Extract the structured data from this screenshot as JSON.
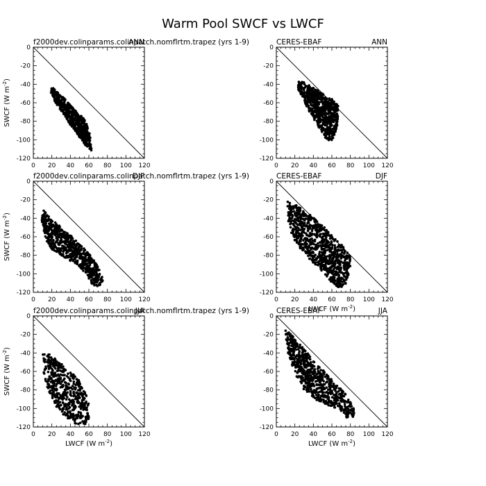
{
  "figure": {
    "title": "Warm Pool SWCF vs LWCF"
  },
  "chart_data": [
    {
      "type": "scatter",
      "model_label": "f2000dev.colinparams.colinpatch.nomflrtm.trapez (yrs 1-9)",
      "season": "ANN",
      "xlabel": "",
      "ylabel": "SWCF (W m^-2)",
      "xlim": [
        0,
        120
      ],
      "ylim": [
        -120,
        0
      ],
      "xticks": [
        "0",
        "20",
        "40",
        "60",
        "80",
        "100",
        "120"
      ],
      "yticks": [
        "0",
        "-20",
        "-40",
        "-60",
        "-80",
        "-100",
        "-120"
      ],
      "cloud": {
        "points": [
          [
            20,
            -42
          ],
          [
            26,
            -48
          ],
          [
            33,
            -55
          ],
          [
            40,
            -62
          ],
          [
            48,
            -70
          ],
          [
            55,
            -78
          ],
          [
            60,
            -88
          ],
          [
            62,
            -100
          ],
          [
            63,
            -112
          ],
          [
            58,
            -108
          ],
          [
            52,
            -100
          ],
          [
            46,
            -92
          ],
          [
            40,
            -84
          ],
          [
            34,
            -74
          ],
          [
            28,
            -66
          ],
          [
            23,
            -58
          ],
          [
            19,
            -50
          ]
        ],
        "n": 600
      }
    },
    {
      "type": "scatter",
      "model_label": "CERES-EBAF",
      "season": "ANN",
      "xlabel": "",
      "ylabel": "",
      "xlim": [
        0,
        120
      ],
      "ylim": [
        -120,
        0
      ],
      "xticks": [
        "0",
        "20",
        "40",
        "60",
        "80",
        "100",
        "120"
      ],
      "yticks": [
        "0",
        "-20",
        "-40",
        "-60",
        "-80",
        "-100",
        "-120"
      ],
      "cloud": {
        "points": [
          [
            22,
            -36
          ],
          [
            30,
            -38
          ],
          [
            40,
            -44
          ],
          [
            50,
            -50
          ],
          [
            60,
            -56
          ],
          [
            67,
            -62
          ],
          [
            67,
            -78
          ],
          [
            64,
            -92
          ],
          [
            60,
            -102
          ],
          [
            54,
            -100
          ],
          [
            48,
            -90
          ],
          [
            42,
            -80
          ],
          [
            36,
            -70
          ],
          [
            30,
            -60
          ],
          [
            26,
            -52
          ],
          [
            23,
            -44
          ]
        ],
        "n": 650
      }
    },
    {
      "type": "scatter",
      "model_label": "f2000dev.colinparams.colinpatch.nomflrtm.trapez (yrs 1-9)",
      "season": "DJF",
      "xlabel": "",
      "ylabel": "SWCF (W m^-2)",
      "xlim": [
        0,
        120
      ],
      "ylim": [
        -120,
        0
      ],
      "xticks": [
        "0",
        "20",
        "40",
        "60",
        "80",
        "100",
        "120"
      ],
      "yticks": [
        "0",
        "-20",
        "-40",
        "-60",
        "-80",
        "-100",
        "-120"
      ],
      "cloud": {
        "points": [
          [
            10,
            -30
          ],
          [
            20,
            -40
          ],
          [
            32,
            -52
          ],
          [
            42,
            -60
          ],
          [
            52,
            -70
          ],
          [
            62,
            -80
          ],
          [
            70,
            -92
          ],
          [
            76,
            -108
          ],
          [
            72,
            -114
          ],
          [
            64,
            -112
          ],
          [
            58,
            -102
          ],
          [
            50,
            -92
          ],
          [
            40,
            -86
          ],
          [
            30,
            -80
          ],
          [
            20,
            -74
          ],
          [
            13,
            -62
          ],
          [
            9,
            -44
          ]
        ],
        "n": 700
      }
    },
    {
      "type": "scatter",
      "model_label": "CERES-EBAF",
      "season": "DJF",
      "xlabel": "LWCF (W m^-2)",
      "ylabel": "",
      "xlim": [
        0,
        120
      ],
      "ylim": [
        -120,
        0
      ],
      "xticks": [
        "0",
        "20",
        "40",
        "60",
        "80",
        "100",
        "120"
      ],
      "yticks": [
        "0",
        "-20",
        "-40",
        "-60",
        "-80",
        "-100",
        "-120"
      ],
      "cloud": {
        "points": [
          [
            12,
            -20
          ],
          [
            22,
            -26
          ],
          [
            36,
            -36
          ],
          [
            50,
            -48
          ],
          [
            62,
            -60
          ],
          [
            72,
            -70
          ],
          [
            80,
            -82
          ],
          [
            80,
            -96
          ],
          [
            76,
            -110
          ],
          [
            68,
            -116
          ],
          [
            60,
            -110
          ],
          [
            52,
            -100
          ],
          [
            42,
            -90
          ],
          [
            32,
            -80
          ],
          [
            22,
            -68
          ],
          [
            15,
            -54
          ],
          [
            12,
            -38
          ]
        ],
        "n": 900
      }
    },
    {
      "type": "scatter",
      "model_label": "f2000dev.colinparams.colinpatch.nomflrtm.trapez (yrs 1-9)",
      "season": "JJA",
      "xlabel": "LWCF (W m^-2)",
      "ylabel": "SWCF (W m^-2)",
      "xlim": [
        0,
        120
      ],
      "ylim": [
        -120,
        0
      ],
      "xticks": [
        "0",
        "20",
        "40",
        "60",
        "80",
        "100",
        "120"
      ],
      "yticks": [
        "0",
        "-20",
        "-40",
        "-60",
        "-80",
        "-100",
        "-120"
      ],
      "cloud": {
        "points": [
          [
            10,
            -38
          ],
          [
            18,
            -42
          ],
          [
            28,
            -50
          ],
          [
            38,
            -58
          ],
          [
            48,
            -68
          ],
          [
            56,
            -80
          ],
          [
            60,
            -95
          ],
          [
            60,
            -112
          ],
          [
            56,
            -118
          ],
          [
            48,
            -118
          ],
          [
            38,
            -112
          ],
          [
            26,
            -100
          ],
          [
            16,
            -82
          ],
          [
            11,
            -60
          ]
        ],
        "n": 500
      }
    },
    {
      "type": "scatter",
      "model_label": "CERES-EBAF",
      "season": "JJA",
      "xlabel": "LWCF (W m^-2)",
      "ylabel": "",
      "xlim": [
        0,
        120
      ],
      "ylim": [
        -120,
        0
      ],
      "xticks": [
        "0",
        "20",
        "40",
        "60",
        "80",
        "100",
        "120"
      ],
      "yticks": [
        "0",
        "-20",
        "-40",
        "-60",
        "-80",
        "-100",
        "-120"
      ],
      "cloud": {
        "points": [
          [
            9,
            -12
          ],
          [
            18,
            -22
          ],
          [
            30,
            -36
          ],
          [
            42,
            -50
          ],
          [
            54,
            -62
          ],
          [
            66,
            -74
          ],
          [
            76,
            -86
          ],
          [
            84,
            -98
          ],
          [
            84,
            -110
          ],
          [
            76,
            -110
          ],
          [
            66,
            -100
          ],
          [
            54,
            -96
          ],
          [
            42,
            -90
          ],
          [
            30,
            -80
          ],
          [
            20,
            -62
          ],
          [
            12,
            -38
          ]
        ],
        "n": 700
      }
    }
  ]
}
